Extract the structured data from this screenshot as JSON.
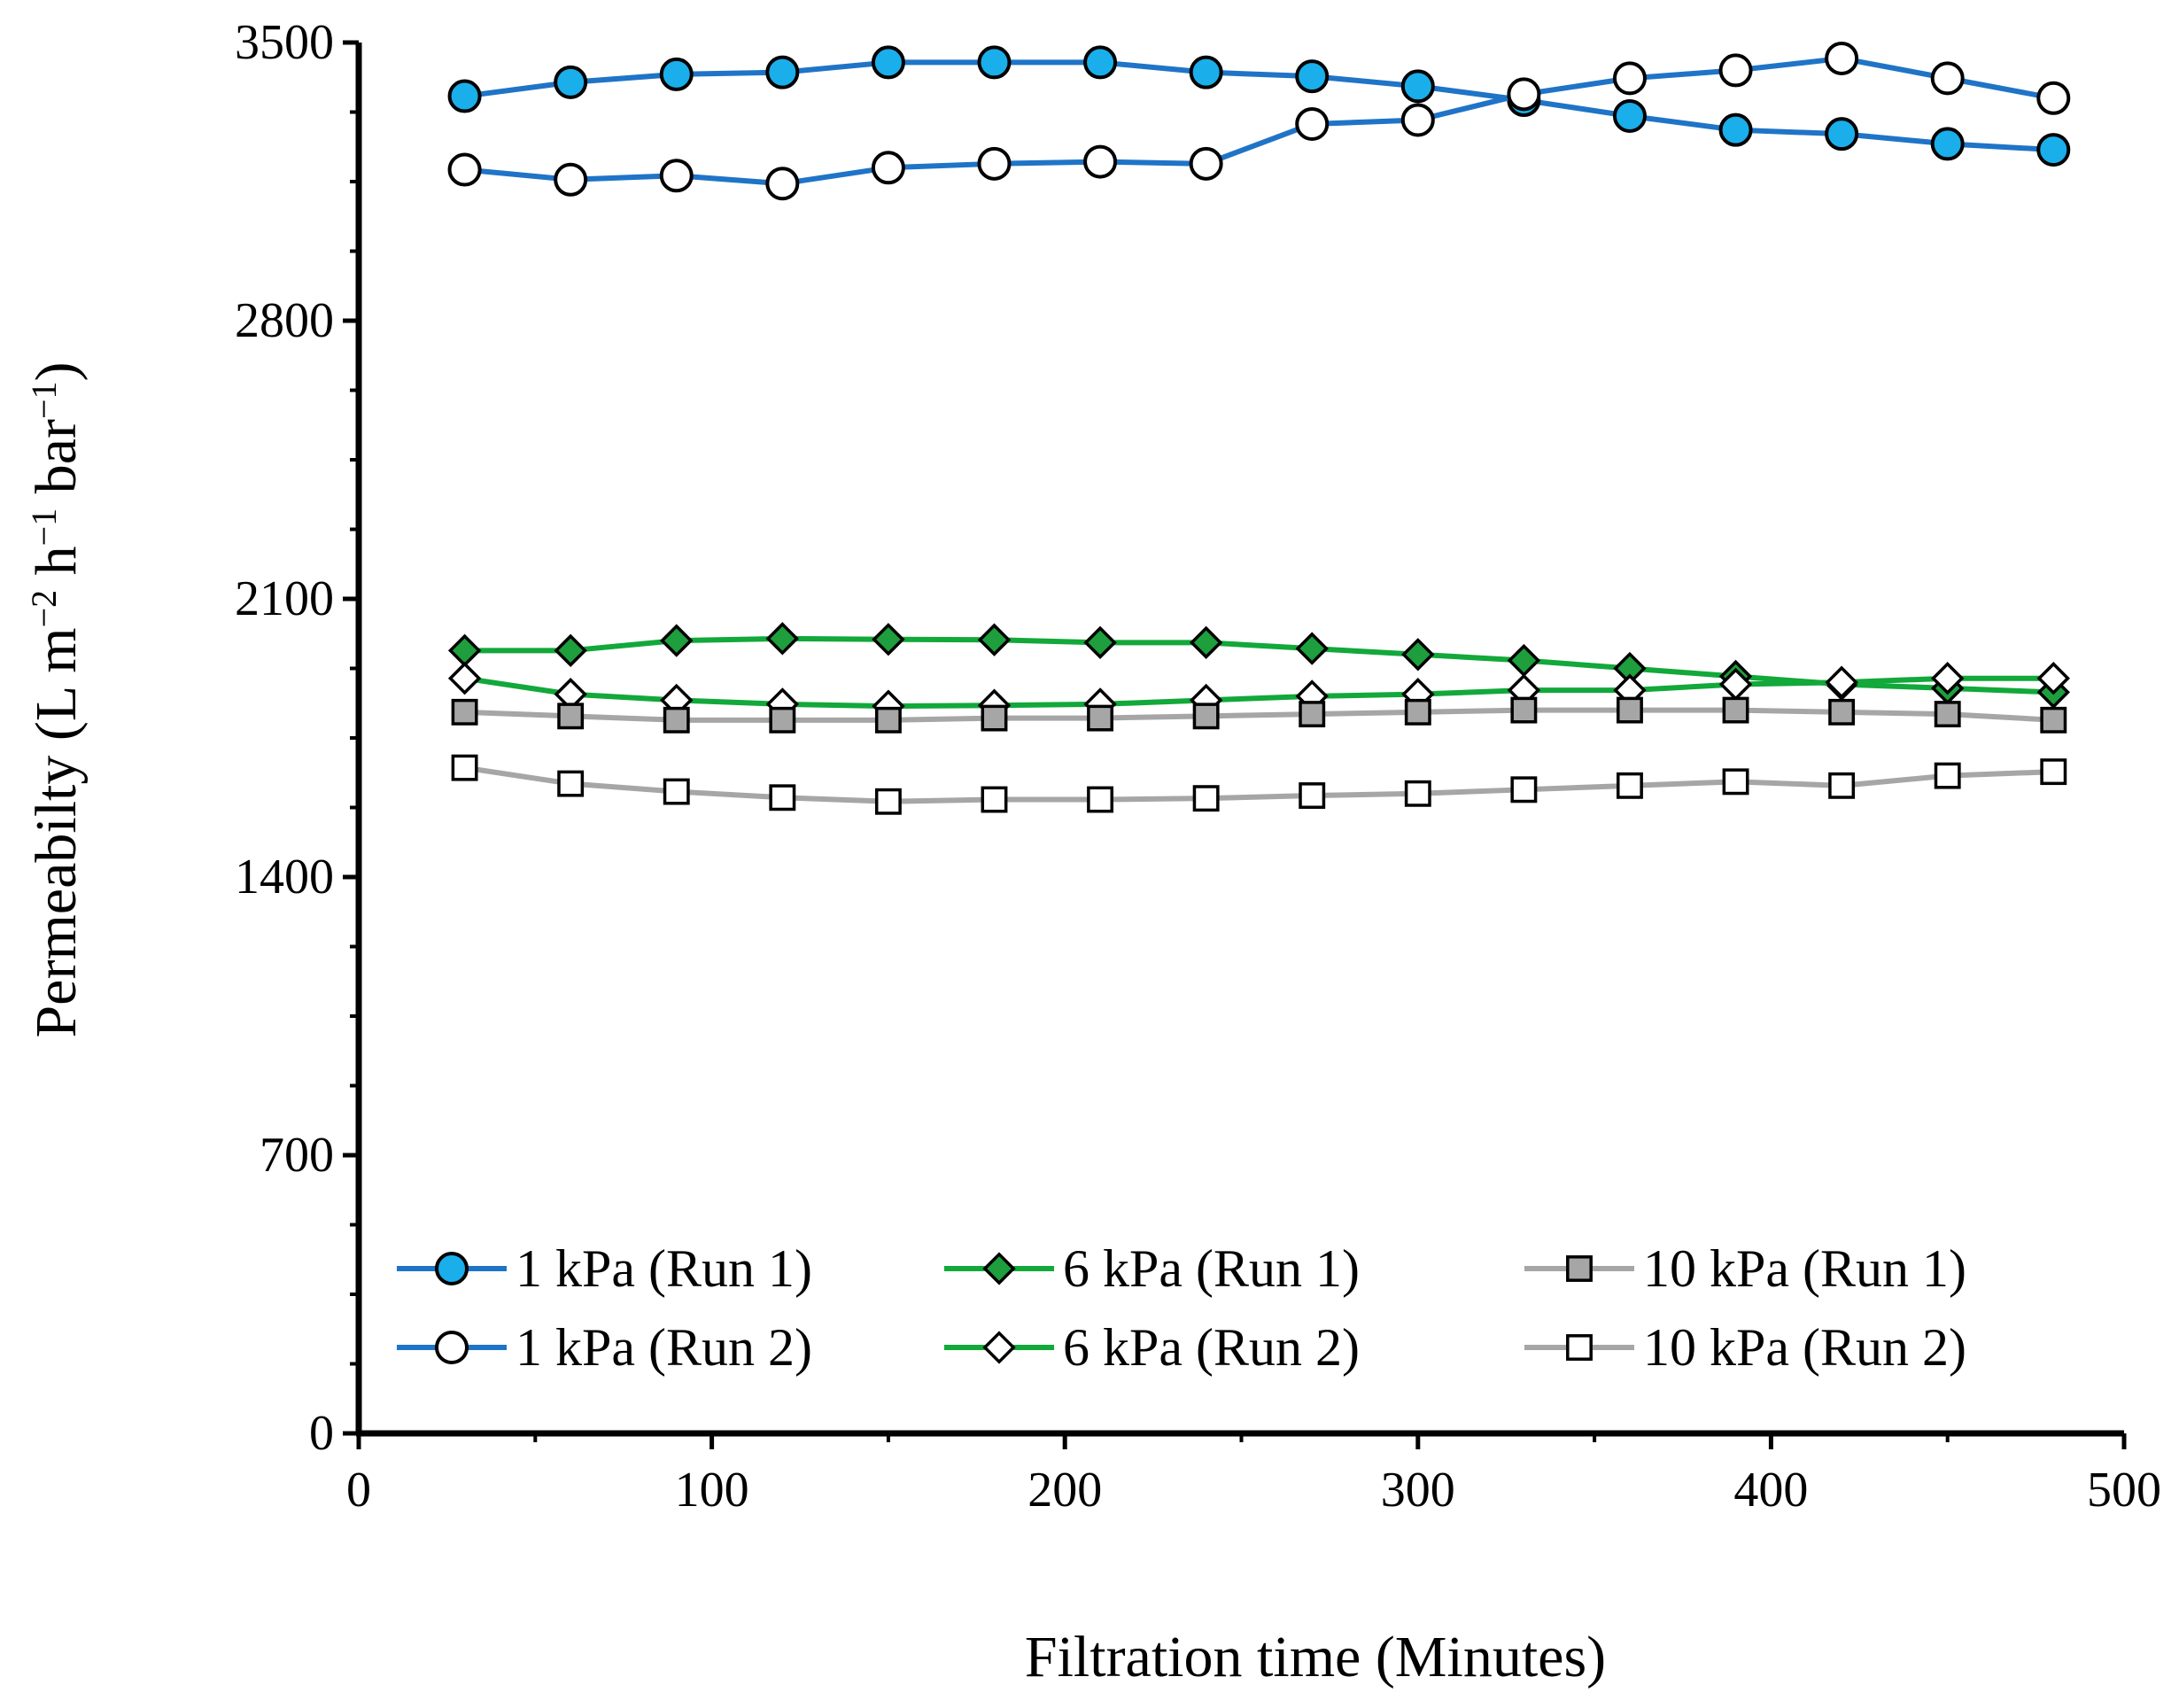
{
  "chart_data": {
    "type": "line",
    "xlabel": "Filtration time (Minutes)",
    "ylabel": {
      "prefix": "Permeabilty (L m",
      "exp1": "−2",
      "mid1": " h",
      "exp2": "−1",
      "mid2": " bar",
      "exp3": "−1",
      "suffix": ")"
    },
    "xlim": [
      0,
      500
    ],
    "ylim": [
      0,
      3500
    ],
    "x_ticks": [
      0,
      100,
      200,
      300,
      400,
      500
    ],
    "y_ticks": [
      0,
      700,
      1400,
      2100,
      2800,
      3500
    ],
    "x": [
      30,
      60,
      90,
      120,
      150,
      180,
      210,
      240,
      270,
      300,
      330,
      360,
      390,
      420,
      450,
      480
    ],
    "series": [
      {
        "name": "1 kPa (Run 1)",
        "line_color": "#1F74C7",
        "marker": "circle",
        "marker_fill": "#1AAEEB",
        "values": [
          3365,
          3400,
          3420,
          3425,
          3450,
          3450,
          3450,
          3425,
          3415,
          3390,
          3355,
          3315,
          3280,
          3270,
          3245,
          3230
        ]
      },
      {
        "name": "1 kPa (Run 2)",
        "line_color": "#1F74C7",
        "marker": "circle",
        "marker_fill": "#FFFFFF",
        "values": [
          3180,
          3155,
          3165,
          3145,
          3185,
          3195,
          3200,
          3195,
          3295,
          3305,
          3370,
          3410,
          3430,
          3460,
          3410,
          3360
        ]
      },
      {
        "name": "6 kPa (Run 1)",
        "line_color": "#12A83A",
        "marker": "diamond",
        "marker_fill": "#1E9E3C",
        "values": [
          1970,
          1970,
          1995,
          2000,
          1998,
          1997,
          1990,
          1990,
          1975,
          1960,
          1945,
          1925,
          1905,
          1885,
          1875,
          1865
        ]
      },
      {
        "name": "6 kPa (Run 2)",
        "line_color": "#12A83A",
        "marker": "diamond",
        "marker_fill": "#FFFFFF",
        "values": [
          1900,
          1860,
          1845,
          1835,
          1830,
          1832,
          1835,
          1845,
          1855,
          1860,
          1870,
          1870,
          1885,
          1890,
          1900,
          1900
        ]
      },
      {
        "name": "10 kPa (Run 1)",
        "line_color": "#A6A6A6",
        "marker": "square",
        "marker_fill": "#A6A6A6",
        "values": [
          1815,
          1805,
          1795,
          1795,
          1795,
          1800,
          1800,
          1805,
          1810,
          1815,
          1820,
          1820,
          1820,
          1815,
          1810,
          1795
        ]
      },
      {
        "name": "10 kPa (Run 2)",
        "line_color": "#A6A6A6",
        "marker": "square",
        "marker_fill": "#FFFFFF",
        "values": [
          1675,
          1635,
          1615,
          1600,
          1590,
          1595,
          1595,
          1598,
          1605,
          1610,
          1620,
          1630,
          1640,
          1630,
          1655,
          1665
        ]
      }
    ],
    "legend_position": "bottom"
  }
}
